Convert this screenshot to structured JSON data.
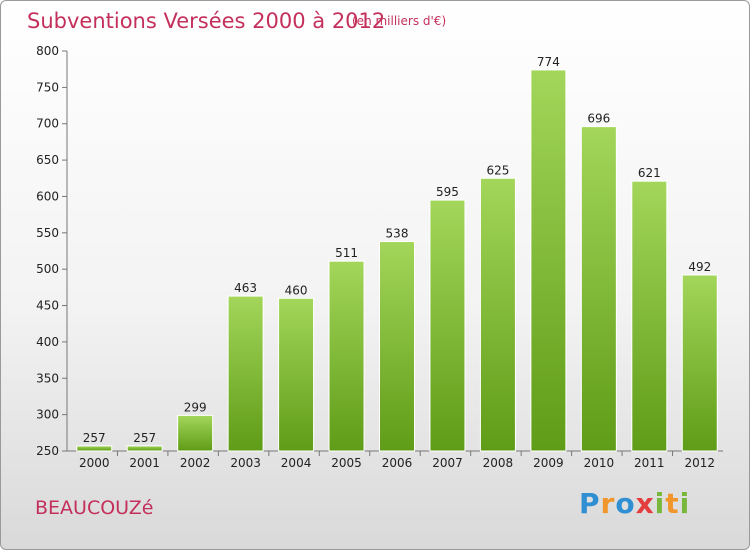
{
  "header": {
    "title": "Subventions Versées 2000 à 2012",
    "subtitle": "(en milliers d'€)"
  },
  "footer": {
    "town": "BEAUCOUZé",
    "logo_text": "Proxiti",
    "logo_colors": [
      "#2f8fd2",
      "#f0962b",
      "#e33d3d",
      "#77b83a"
    ]
  },
  "colors": {
    "title": "#c4305c",
    "bar_light": "#a3d65a",
    "bar_dark": "#5f9c17"
  },
  "chart_data": {
    "type": "bar",
    "title": "Subventions Versées 2000 à 2012",
    "subtitle": "(en milliers d'€)",
    "categories": [
      "2000",
      "2001",
      "2002",
      "2003",
      "2004",
      "2005",
      "2006",
      "2007",
      "2008",
      "2009",
      "2010",
      "2011",
      "2012"
    ],
    "values": [
      257,
      257,
      299,
      463,
      460,
      511,
      538,
      595,
      625,
      774,
      696,
      621,
      492
    ],
    "xlabel": "",
    "ylabel": "",
    "ylim": [
      250,
      800
    ],
    "yticks": [
      250,
      300,
      350,
      400,
      450,
      500,
      550,
      600,
      650,
      700,
      750,
      800
    ],
    "grid": false,
    "legend": "none",
    "data_labels": true
  }
}
